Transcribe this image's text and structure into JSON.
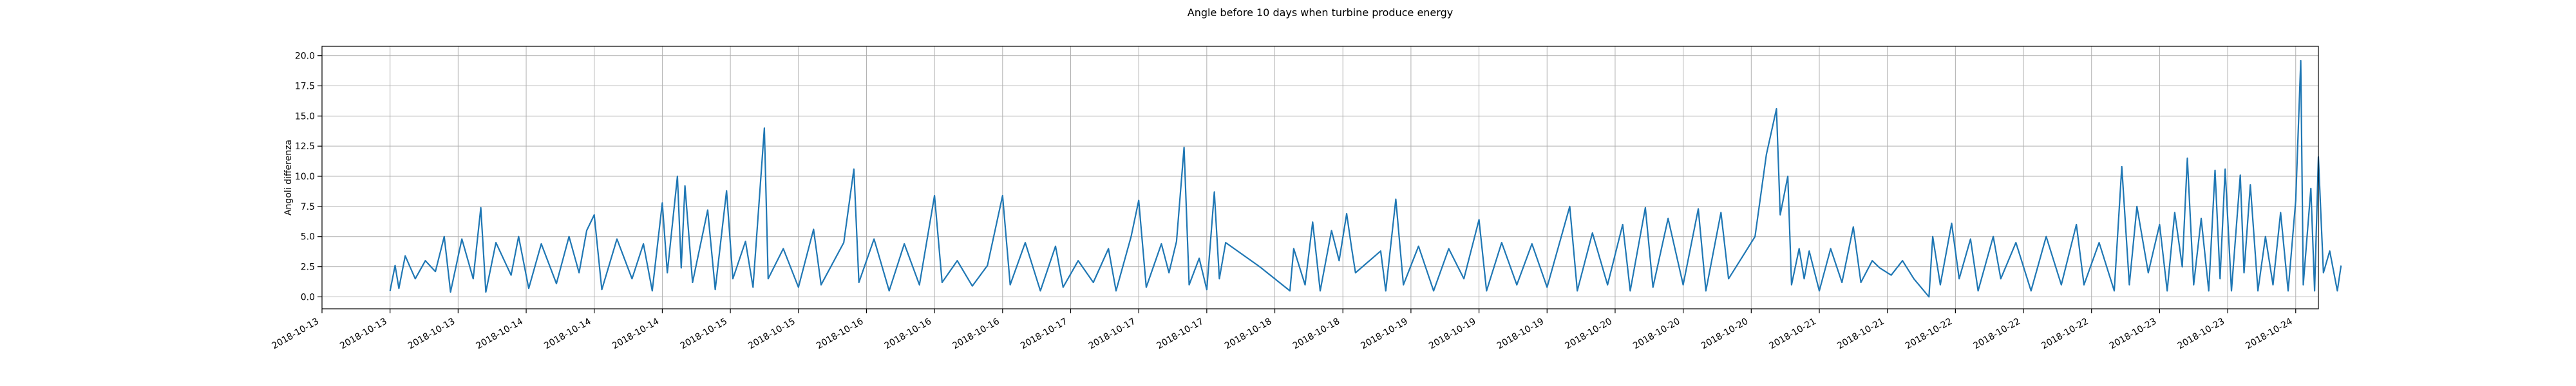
{
  "chart_data": {
    "type": "line",
    "title": "Angle before 10 days when turbine produce energy",
    "xlabel": "",
    "ylabel": "Angoli differenza",
    "xlim": [
      "2018-10-13T00:00",
      "2018-10-24T00:00"
    ],
    "ylim": [
      -0.99,
      20.78
    ],
    "yticks": [
      0.0,
      2.5,
      5.0,
      7.5,
      10.0,
      12.5,
      15.0,
      17.5,
      20.0
    ],
    "ytick_labels": [
      "0.0",
      "2.5",
      "5.0",
      "7.5",
      "10.0",
      "12.5",
      "15.0",
      "17.5",
      "20.0"
    ],
    "xticks": [
      "2018-10-13T00:00",
      "2018-10-13T09:00",
      "2018-10-13T18:00",
      "2018-10-14T03:00",
      "2018-10-14T12:00",
      "2018-10-14T21:00",
      "2018-10-15T06:00",
      "2018-10-15T15:00",
      "2018-10-16T00:00",
      "2018-10-16T09:00",
      "2018-10-16T18:00",
      "2018-10-17T03:00",
      "2018-10-17T12:00",
      "2018-10-17T21:00",
      "2018-10-18T06:00",
      "2018-10-18T15:00",
      "2018-10-19T00:00",
      "2018-10-19T09:00",
      "2018-10-19T18:00",
      "2018-10-20T03:00",
      "2018-10-20T12:00",
      "2018-10-20T21:00",
      "2018-10-21T06:00",
      "2018-10-21T15:00",
      "2018-10-22T00:00",
      "2018-10-22T09:00",
      "2018-10-22T18:00",
      "2018-10-23T03:00",
      "2018-10-23T12:00",
      "2018-10-23T21:00"
    ],
    "xtick_labels": [
      "2018-10-13",
      "2018-10-13",
      "2018-10-13",
      "2018-10-14",
      "2018-10-14",
      "2018-10-14",
      "2018-10-15",
      "2018-10-15",
      "2018-10-16",
      "2018-10-16",
      "2018-10-16",
      "2018-10-17",
      "2018-10-17",
      "2018-10-17",
      "2018-10-18",
      "2018-10-18",
      "2018-10-19",
      "2018-10-19",
      "2018-10-19",
      "2018-10-20",
      "2018-10-20",
      "2018-10-20",
      "2018-10-21",
      "2018-10-21",
      "2018-10-22",
      "2018-10-22",
      "2018-10-22",
      "2018-10-23",
      "2018-10-23",
      "2018-10-24"
    ],
    "grid": true,
    "color": "#1f77b4",
    "series": [
      {
        "name": "",
        "points": [
          [
            "2018-10-13T09:00",
            0.5
          ],
          [
            "2018-10-13T09:40",
            2.6
          ],
          [
            "2018-10-13T10:10",
            0.7
          ],
          [
            "2018-10-13T11:00",
            3.4
          ],
          [
            "2018-10-13T12:20",
            1.5
          ],
          [
            "2018-10-13T13:40",
            3.0
          ],
          [
            "2018-10-13T15:00",
            2.1
          ],
          [
            "2018-10-13T16:10",
            5.0
          ],
          [
            "2018-10-13T17:00",
            0.4
          ],
          [
            "2018-10-13T18:30",
            4.8
          ],
          [
            "2018-10-13T20:00",
            1.5
          ],
          [
            "2018-10-13T21:00",
            7.4
          ],
          [
            "2018-10-13T21:40",
            0.4
          ],
          [
            "2018-10-13T23:00",
            4.5
          ],
          [
            "2018-10-14T01:00",
            1.8
          ],
          [
            "2018-10-14T02:00",
            5.0
          ],
          [
            "2018-10-14T03:20",
            0.7
          ],
          [
            "2018-10-14T05:00",
            4.4
          ],
          [
            "2018-10-14T07:00",
            1.1
          ],
          [
            "2018-10-14T08:40",
            5.0
          ],
          [
            "2018-10-14T10:00",
            2.0
          ],
          [
            "2018-10-14T11:00",
            5.5
          ],
          [
            "2018-10-14T12:00",
            6.8
          ],
          [
            "2018-10-14T13:00",
            0.6
          ],
          [
            "2018-10-14T15:00",
            4.8
          ],
          [
            "2018-10-14T17:00",
            1.5
          ],
          [
            "2018-10-14T18:30",
            4.4
          ],
          [
            "2018-10-14T19:40",
            0.5
          ],
          [
            "2018-10-14T21:00",
            7.8
          ],
          [
            "2018-10-14T21:40",
            2.0
          ],
          [
            "2018-10-14T23:00",
            10.0
          ],
          [
            "2018-10-14T23:30",
            2.4
          ],
          [
            "2018-10-15T00:00",
            9.2
          ],
          [
            "2018-10-15T01:00",
            1.2
          ],
          [
            "2018-10-15T03:00",
            7.2
          ],
          [
            "2018-10-15T04:00",
            0.6
          ],
          [
            "2018-10-15T05:30",
            8.8
          ],
          [
            "2018-10-15T06:20",
            1.5
          ],
          [
            "2018-10-15T08:00",
            4.6
          ],
          [
            "2018-10-15T09:00",
            0.8
          ],
          [
            "2018-10-15T10:30",
            14.0
          ],
          [
            "2018-10-15T11:00",
            1.5
          ],
          [
            "2018-10-15T13:00",
            4.0
          ],
          [
            "2018-10-15T15:00",
            0.8
          ],
          [
            "2018-10-15T17:00",
            5.6
          ],
          [
            "2018-10-15T18:00",
            1.0
          ],
          [
            "2018-10-15T21:00",
            4.5
          ],
          [
            "2018-10-15T22:20",
            10.6
          ],
          [
            "2018-10-15T23:00",
            1.2
          ],
          [
            "2018-10-16T01:00",
            4.8
          ],
          [
            "2018-10-16T03:00",
            0.5
          ],
          [
            "2018-10-16T05:00",
            4.4
          ],
          [
            "2018-10-16T07:00",
            1.0
          ],
          [
            "2018-10-16T09:00",
            8.4
          ],
          [
            "2018-10-16T10:00",
            1.2
          ],
          [
            "2018-10-16T12:00",
            3.0
          ],
          [
            "2018-10-16T14:00",
            0.9
          ],
          [
            "2018-10-16T16:00",
            2.6
          ],
          [
            "2018-10-16T18:00",
            8.4
          ],
          [
            "2018-10-16T19:00",
            1.0
          ],
          [
            "2018-10-16T21:00",
            4.5
          ],
          [
            "2018-10-16T23:00",
            0.5
          ],
          [
            "2018-10-17T01:00",
            4.2
          ],
          [
            "2018-10-17T02:00",
            0.8
          ],
          [
            "2018-10-17T04:00",
            3.0
          ],
          [
            "2018-10-17T06:00",
            1.2
          ],
          [
            "2018-10-17T08:00",
            4.0
          ],
          [
            "2018-10-17T09:00",
            0.5
          ],
          [
            "2018-10-17T11:00",
            5.0
          ],
          [
            "2018-10-17T12:00",
            8.0
          ],
          [
            "2018-10-17T13:00",
            0.8
          ],
          [
            "2018-10-17T15:00",
            4.4
          ],
          [
            "2018-10-17T16:00",
            2.0
          ],
          [
            "2018-10-17T17:00",
            4.6
          ],
          [
            "2018-10-17T18:00",
            12.4
          ],
          [
            "2018-10-17T18:40",
            1.0
          ],
          [
            "2018-10-17T20:00",
            3.2
          ],
          [
            "2018-10-17T21:00",
            0.6
          ],
          [
            "2018-10-17T22:00",
            8.7
          ],
          [
            "2018-10-17T22:40",
            1.5
          ],
          [
            "2018-10-17T23:30",
            4.5
          ],
          [
            "2018-10-18T04:00",
            2.5
          ],
          [
            "2018-10-18T08:00",
            0.5
          ],
          [
            "2018-10-18T08:30",
            4.0
          ],
          [
            "2018-10-18T10:00",
            1.0
          ],
          [
            "2018-10-18T11:00",
            6.2
          ],
          [
            "2018-10-18T12:00",
            0.5
          ],
          [
            "2018-10-18T13:30",
            5.5
          ],
          [
            "2018-10-18T14:30",
            3.0
          ],
          [
            "2018-10-18T15:30",
            6.9
          ],
          [
            "2018-10-18T16:10",
            4.0
          ],
          [
            "2018-10-18T16:40",
            2.0
          ],
          [
            "2018-10-18T20:00",
            3.8
          ],
          [
            "2018-10-18T20:40",
            0.5
          ],
          [
            "2018-10-18T22:00",
            8.1
          ],
          [
            "2018-10-18T23:00",
            1.0
          ],
          [
            "2018-10-19T01:00",
            4.2
          ],
          [
            "2018-10-19T03:00",
            0.5
          ],
          [
            "2018-10-19T05:00",
            4.0
          ],
          [
            "2018-10-19T07:00",
            1.5
          ],
          [
            "2018-10-19T09:00",
            6.4
          ],
          [
            "2018-10-19T10:00",
            0.5
          ],
          [
            "2018-10-19T12:00",
            4.5
          ],
          [
            "2018-10-19T14:00",
            1.0
          ],
          [
            "2018-10-19T16:00",
            4.4
          ],
          [
            "2018-10-19T18:00",
            0.8
          ],
          [
            "2018-10-19T21:00",
            7.5
          ],
          [
            "2018-10-19T22:00",
            0.5
          ],
          [
            "2018-10-20T00:00",
            5.3
          ],
          [
            "2018-10-20T02:00",
            1.0
          ],
          [
            "2018-10-20T04:00",
            6.0
          ],
          [
            "2018-10-20T05:00",
            0.5
          ],
          [
            "2018-10-20T07:00",
            7.4
          ],
          [
            "2018-10-20T08:00",
            0.8
          ],
          [
            "2018-10-20T10:00",
            6.5
          ],
          [
            "2018-10-20T12:00",
            1.0
          ],
          [
            "2018-10-20T14:00",
            7.3
          ],
          [
            "2018-10-20T15:00",
            0.5
          ],
          [
            "2018-10-20T17:00",
            7.0
          ],
          [
            "2018-10-20T18:00",
            1.5
          ],
          [
            "2018-10-20T20:00",
            3.5
          ],
          [
            "2018-10-20T21:30",
            5.0
          ],
          [
            "2018-10-20T23:00",
            11.8
          ],
          [
            "2018-10-21T00:20",
            15.6
          ],
          [
            "2018-10-21T00:50",
            6.8
          ],
          [
            "2018-10-21T01:50",
            10.0
          ],
          [
            "2018-10-21T02:20",
            1.0
          ],
          [
            "2018-10-21T03:20",
            4.0
          ],
          [
            "2018-10-21T04:00",
            1.5
          ],
          [
            "2018-10-21T04:40",
            3.8
          ],
          [
            "2018-10-21T06:00",
            0.5
          ],
          [
            "2018-10-21T07:30",
            4.0
          ],
          [
            "2018-10-21T09:00",
            1.2
          ],
          [
            "2018-10-21T10:30",
            5.8
          ],
          [
            "2018-10-21T11:30",
            1.2
          ],
          [
            "2018-10-21T13:00",
            3.0
          ],
          [
            "2018-10-21T14:00",
            2.4
          ],
          [
            "2018-10-21T15:30",
            1.8
          ],
          [
            "2018-10-21T17:00",
            3.0
          ],
          [
            "2018-10-21T18:30",
            1.5
          ],
          [
            "2018-10-21T20:30",
            0.0
          ],
          [
            "2018-10-21T21:00",
            5.0
          ],
          [
            "2018-10-21T22:00",
            1.0
          ],
          [
            "2018-10-21T23:30",
            6.1
          ],
          [
            "2018-10-22T00:30",
            1.5
          ],
          [
            "2018-10-22T02:00",
            4.8
          ],
          [
            "2018-10-22T03:00",
            0.5
          ],
          [
            "2018-10-22T05:00",
            5.0
          ],
          [
            "2018-10-22T06:00",
            1.5
          ],
          [
            "2018-10-22T08:00",
            4.5
          ],
          [
            "2018-10-22T10:00",
            0.5
          ],
          [
            "2018-10-22T12:00",
            5.0
          ],
          [
            "2018-10-22T14:00",
            1.0
          ],
          [
            "2018-10-22T16:00",
            6.0
          ],
          [
            "2018-10-22T17:00",
            1.0
          ],
          [
            "2018-10-22T19:00",
            4.5
          ],
          [
            "2018-10-22T21:00",
            0.5
          ],
          [
            "2018-10-22T22:00",
            10.8
          ],
          [
            "2018-10-22T23:00",
            1.0
          ],
          [
            "2018-10-23T00:00",
            7.5
          ],
          [
            "2018-10-23T01:30",
            2.0
          ],
          [
            "2018-10-23T03:00",
            6.0
          ],
          [
            "2018-10-23T04:00",
            0.5
          ],
          [
            "2018-10-23T05:00",
            7.0
          ],
          [
            "2018-10-23T06:00",
            2.5
          ],
          [
            "2018-10-23T06:40",
            11.5
          ],
          [
            "2018-10-23T07:30",
            1.0
          ],
          [
            "2018-10-23T08:30",
            6.5
          ],
          [
            "2018-10-23T09:30",
            0.5
          ],
          [
            "2018-10-23T10:20",
            10.5
          ],
          [
            "2018-10-23T11:00",
            1.5
          ],
          [
            "2018-10-23T11:40",
            10.6
          ],
          [
            "2018-10-23T12:30",
            0.5
          ],
          [
            "2018-10-23T13:40",
            10.1
          ],
          [
            "2018-10-23T14:10",
            2.0
          ],
          [
            "2018-10-23T15:00",
            9.3
          ],
          [
            "2018-10-23T16:00",
            0.5
          ],
          [
            "2018-10-23T17:00",
            5.0
          ],
          [
            "2018-10-23T18:00",
            1.0
          ],
          [
            "2018-10-23T19:00",
            7.0
          ],
          [
            "2018-10-23T20:00",
            0.5
          ],
          [
            "2018-10-23T21:00",
            8.0
          ],
          [
            "2018-10-23T21:40",
            19.6
          ],
          [
            "2018-10-23T22:00",
            1.0
          ],
          [
            "2018-10-23T23:00",
            9.0
          ],
          [
            "2018-10-23T23:30",
            0.5
          ],
          [
            "2018-10-24T00:00",
            11.6
          ],
          [
            "2018-10-24T00:40",
            2.0
          ],
          [
            "2018-10-24T01:30",
            3.8
          ],
          [
            "2018-10-24T02:30",
            0.5
          ],
          [
            "2018-10-24T03:00",
            2.6
          ]
        ]
      }
    ]
  }
}
